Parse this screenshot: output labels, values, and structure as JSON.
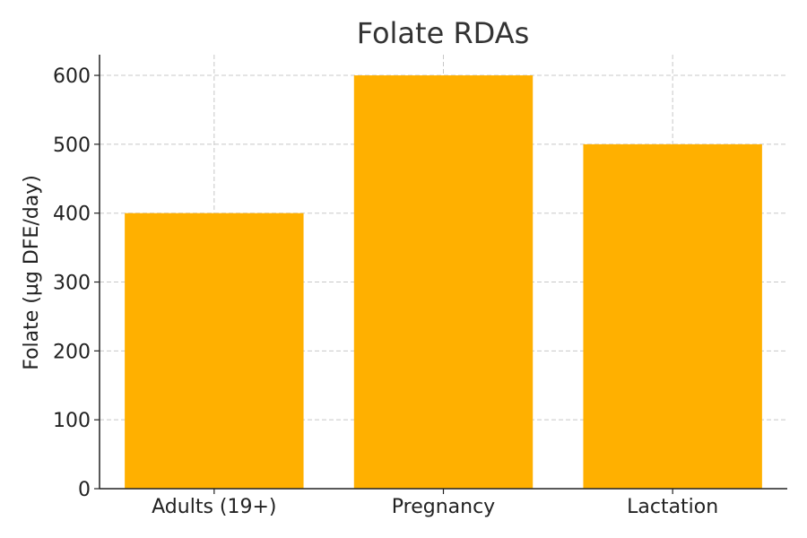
{
  "chart_data": {
    "type": "bar",
    "title": "Folate RDAs",
    "xlabel": "",
    "ylabel": "Folate (µg DFE/day)",
    "categories": [
      "Adults (19+)",
      "Pregnancy",
      "Lactation"
    ],
    "values": [
      400,
      600,
      500
    ],
    "ylim": [
      0,
      630
    ],
    "yticks": [
      0,
      100,
      200,
      300,
      400,
      500,
      600
    ],
    "grid": true,
    "bar_color": "#FFB000"
  }
}
